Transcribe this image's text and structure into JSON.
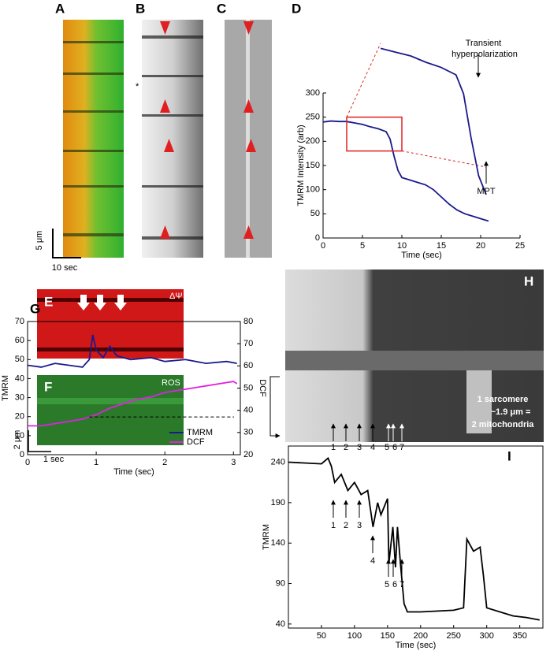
{
  "figure": {
    "labels": {
      "A": "A",
      "B": "B",
      "C": "C",
      "E": "E",
      "F": "F",
      "H": "H"
    },
    "scale_a": {
      "y": "5 μm",
      "x": "10 sec"
    },
    "asterisk": "*",
    "e_label": "ΔΨ",
    "f_label": "ROS",
    "scale_ef": {
      "y": "2 μm",
      "x": "1 sec"
    },
    "h_note": [
      "1 sarcomere",
      "~1.9 μm =",
      "2 mitochondria"
    ],
    "h_arrows": [
      "1",
      "2",
      "3",
      "4",
      "5",
      "6",
      "7"
    ]
  },
  "chart_data": [
    {
      "type": "line",
      "panel": "D",
      "xlabel": "Time (sec)",
      "ylabel": "TMRM Intensity (arb)",
      "xlim": [
        0,
        25
      ],
      "xticks": [
        0,
        5,
        10,
        15,
        20,
        25
      ],
      "ylim": [
        0,
        300
      ],
      "yticks": [
        0,
        50,
        100,
        150,
        200,
        250,
        300
      ],
      "zoom_x": [
        3,
        10
      ],
      "annotations": [
        "Transient hyperpolarization",
        "MPT"
      ],
      "series": [
        {
          "color": "#1a1a8c",
          "x": [
            0,
            1,
            2,
            3,
            4,
            5,
            6,
            7,
            8,
            8.5,
            9,
            9.5,
            10,
            11,
            12,
            13,
            14,
            15,
            16,
            17,
            18,
            19,
            20,
            21
          ],
          "values": [
            240,
            242,
            241,
            241,
            238,
            235,
            230,
            226,
            220,
            205,
            170,
            140,
            125,
            120,
            115,
            110,
            100,
            85,
            70,
            58,
            50,
            45,
            40,
            35
          ]
        }
      ]
    },
    {
      "type": "line",
      "panel": "G",
      "xlabel": "Time (sec)",
      "ylabel": "TMRM",
      "y2label": "DCF",
      "xlim": [
        0,
        3.1
      ],
      "xticks": [
        0,
        1,
        2,
        3
      ],
      "ylim": [
        0,
        70
      ],
      "yticks": [
        0,
        10,
        20,
        30,
        40,
        50,
        60,
        70
      ],
      "y2lim": [
        20,
        80
      ],
      "y2ticks": [
        20,
        30,
        40,
        50,
        60,
        70,
        80
      ],
      "legend": "lower right",
      "baseline": {
        "value": 37,
        "axis": "y2",
        "xmin": 0.9
      },
      "series": [
        {
          "name": "TMRM",
          "color": "#1a1a8c",
          "x": [
            0,
            0.2,
            0.4,
            0.6,
            0.8,
            0.9,
            0.95,
            1.0,
            1.1,
            1.2,
            1.3,
            1.5,
            1.8,
            2.0,
            2.3,
            2.6,
            2.9,
            3.05
          ],
          "values": [
            47,
            46,
            48,
            47,
            46,
            50,
            63,
            55,
            51,
            57,
            52,
            50,
            51,
            49,
            50,
            48,
            49,
            48
          ]
        },
        {
          "name": "DCF",
          "color": "#e020e0",
          "axis": "y2",
          "x": [
            0,
            0.2,
            0.4,
            0.6,
            0.8,
            1.0,
            1.2,
            1.4,
            1.6,
            1.8,
            2.0,
            2.2,
            2.4,
            2.6,
            2.8,
            3.0,
            3.05
          ],
          "values": [
            33,
            33,
            34,
            35,
            36,
            38,
            41,
            43,
            45,
            46,
            48,
            49,
            50,
            51,
            52,
            53,
            52
          ]
        }
      ]
    },
    {
      "type": "line",
      "panel": "I",
      "xlabel": "Time (sec)",
      "ylabel": "TMRM",
      "xlim": [
        0,
        385
      ],
      "xticks": [
        50,
        100,
        150,
        200,
        250,
        300,
        350
      ],
      "ylim": [
        35,
        260
      ],
      "yticks": [
        40,
        90,
        140,
        190,
        240
      ],
      "annotations": [
        "1",
        "2",
        "3",
        "4",
        "5",
        "6",
        "7"
      ],
      "series": [
        {
          "color": "#000000",
          "x": [
            0,
            50,
            60,
            65,
            70,
            80,
            90,
            100,
            110,
            120,
            128,
            135,
            140,
            150,
            152,
            158,
            162,
            165,
            170,
            175,
            180,
            200,
            250,
            265,
            270,
            280,
            290,
            295,
            300,
            320,
            340,
            360,
            380
          ],
          "values": [
            240,
            238,
            245,
            235,
            215,
            225,
            205,
            215,
            200,
            205,
            160,
            190,
            175,
            195,
            115,
            160,
            110,
            160,
            110,
            65,
            55,
            55,
            57,
            60,
            145,
            130,
            135,
            100,
            60,
            55,
            50,
            48,
            45
          ]
        }
      ]
    }
  ]
}
